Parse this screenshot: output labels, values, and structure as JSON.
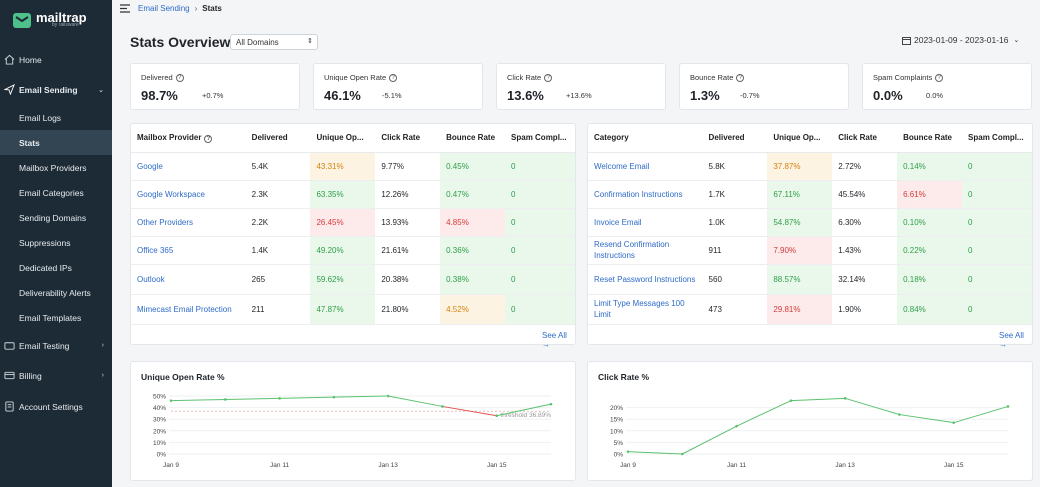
{
  "sidebar": {
    "brand": "mailtrap",
    "brand_sub": "by railsware",
    "items": [
      {
        "label": "Home",
        "icon": "home-icon"
      },
      {
        "label": "Email Sending",
        "icon": "send-icon"
      },
      {
        "label": "Email Logs"
      },
      {
        "label": "Stats"
      },
      {
        "label": "Mailbox Providers"
      },
      {
        "label": "Email Categories"
      },
      {
        "label": "Sending Domains"
      },
      {
        "label": "Suppressions"
      },
      {
        "label": "Dedicated IPs"
      },
      {
        "label": "Deliverability Alerts"
      },
      {
        "label": "Email Templates"
      },
      {
        "label": "Email Testing",
        "icon": "testing-icon"
      },
      {
        "label": "Billing",
        "icon": "billing-icon"
      },
      {
        "label": "Account Settings",
        "icon": "settings-icon"
      }
    ]
  },
  "breadcrumb": {
    "parent": "Email Sending",
    "current": "Stats"
  },
  "header": {
    "title": "Stats Overview",
    "domain_select": "All Domains",
    "date_range": "2023-01-09 - 2023-01-16"
  },
  "cards": [
    {
      "label": "Delivered",
      "value": "98.7%",
      "change": "+0.7%"
    },
    {
      "label": "Unique Open Rate",
      "value": "46.1%",
      "change": "-5.1%"
    },
    {
      "label": "Click Rate",
      "value": "13.6%",
      "change": "+13.6%"
    },
    {
      "label": "Bounce Rate",
      "value": "1.3%",
      "change": "-0.7%"
    },
    {
      "label": "Spam Complaints",
      "value": "0.0%",
      "change": "0.0%"
    }
  ],
  "providers": {
    "headers": [
      "Mailbox Provider",
      "Delivered",
      "Unique Op...",
      "Click Rate",
      "Bounce Rate",
      "Spam Compl..."
    ],
    "rows": [
      {
        "name": "Google",
        "delivered": "5.4K",
        "open": "43.31%",
        "open_s": "o",
        "click": "9.77%",
        "bounce": "0.45%",
        "bounce_s": "g",
        "spam": "0"
      },
      {
        "name": "Google Workspace",
        "delivered": "2.3K",
        "open": "63.35%",
        "open_s": "g",
        "click": "12.26%",
        "bounce": "0.47%",
        "bounce_s": "g",
        "spam": "0"
      },
      {
        "name": "Other Providers",
        "delivered": "2.2K",
        "open": "26.45%",
        "open_s": "r",
        "click": "13.93%",
        "bounce": "4.85%",
        "bounce_s": "r",
        "spam": "0"
      },
      {
        "name": "Office 365",
        "delivered": "1.4K",
        "open": "49.20%",
        "open_s": "g",
        "click": "21.61%",
        "bounce": "0.36%",
        "bounce_s": "g",
        "spam": "0"
      },
      {
        "name": "Outlook",
        "delivered": "265",
        "open": "59.62%",
        "open_s": "g",
        "click": "20.38%",
        "bounce": "0.38%",
        "bounce_s": "g",
        "spam": "0"
      },
      {
        "name": "Mimecast Email Protection",
        "delivered": "211",
        "open": "47.87%",
        "open_s": "g",
        "click": "21.80%",
        "bounce": "4.52%",
        "bounce_s": "o",
        "spam": "0"
      }
    ],
    "see_all": "See All →"
  },
  "categories": {
    "headers": [
      "Category",
      "Delivered",
      "Unique Op...",
      "Click Rate",
      "Bounce Rate",
      "Spam Compl..."
    ],
    "rows": [
      {
        "name": "Welcome Email",
        "delivered": "5.8K",
        "open": "37.87%",
        "open_s": "o",
        "click": "2.72%",
        "bounce": "0.14%",
        "bounce_s": "g",
        "spam": "0"
      },
      {
        "name": "Confirmation Instructions",
        "delivered": "1.7K",
        "open": "67.11%",
        "open_s": "g",
        "click": "45.54%",
        "bounce": "6.61%",
        "bounce_s": "r",
        "spam": "0"
      },
      {
        "name": "Invoice Email",
        "delivered": "1.0K",
        "open": "54.87%",
        "open_s": "g",
        "click": "6.30%",
        "bounce": "0.10%",
        "bounce_s": "g",
        "spam": "0"
      },
      {
        "name": "Resend Confirmation Instructions",
        "delivered": "911",
        "open": "7.90%",
        "open_s": "r",
        "click": "1.43%",
        "bounce": "0.22%",
        "bounce_s": "g",
        "spam": "0"
      },
      {
        "name": "Reset Password Instructions",
        "delivered": "560",
        "open": "88.57%",
        "open_s": "g",
        "click": "32.14%",
        "bounce": "0.18%",
        "bounce_s": "g",
        "spam": "0"
      },
      {
        "name": "Limit Type Messages 100 Limit",
        "delivered": "473",
        "open": "29.81%",
        "open_s": "r",
        "click": "1.90%",
        "bounce": "0.84%",
        "bounce_s": "g",
        "spam": "0"
      }
    ],
    "see_all": "See All →"
  },
  "colors": {
    "green": "#5bc26f",
    "red": "#e05252",
    "sidebar": "#1d2b36"
  },
  "chart_data": [
    {
      "type": "line",
      "title": "Unique Open Rate %",
      "x": [
        "Jan 9",
        "Jan 10",
        "Jan 11",
        "Jan 12",
        "Jan 13",
        "Jan 14",
        "Jan 15",
        "Jan 16"
      ],
      "xticks": [
        "Jan 9",
        "Jan 11",
        "Jan 13",
        "Jan 15"
      ],
      "values": [
        46,
        47,
        48,
        49,
        50,
        41,
        33,
        43
      ],
      "ylim": [
        0,
        50
      ],
      "yticks": [
        "50%",
        "40%",
        "30%",
        "20%",
        "10%",
        "0%"
      ],
      "threshold": 36.89,
      "threshold_label": "threshold 36.89%"
    },
    {
      "type": "line",
      "title": "Click Rate %",
      "x": [
        "Jan 9",
        "Jan 10",
        "Jan 11",
        "Jan 12",
        "Jan 13",
        "Jan 14",
        "Jan 15",
        "Jan 16"
      ],
      "xticks": [
        "Jan 9",
        "Jan 11",
        "Jan 13",
        "Jan 15"
      ],
      "values": [
        1,
        0,
        12,
        23,
        24,
        17,
        13.5,
        20.5
      ],
      "ylim": [
        0,
        25
      ],
      "yticks": [
        "20%",
        "15%",
        "10%",
        "5%",
        "0%"
      ]
    }
  ]
}
